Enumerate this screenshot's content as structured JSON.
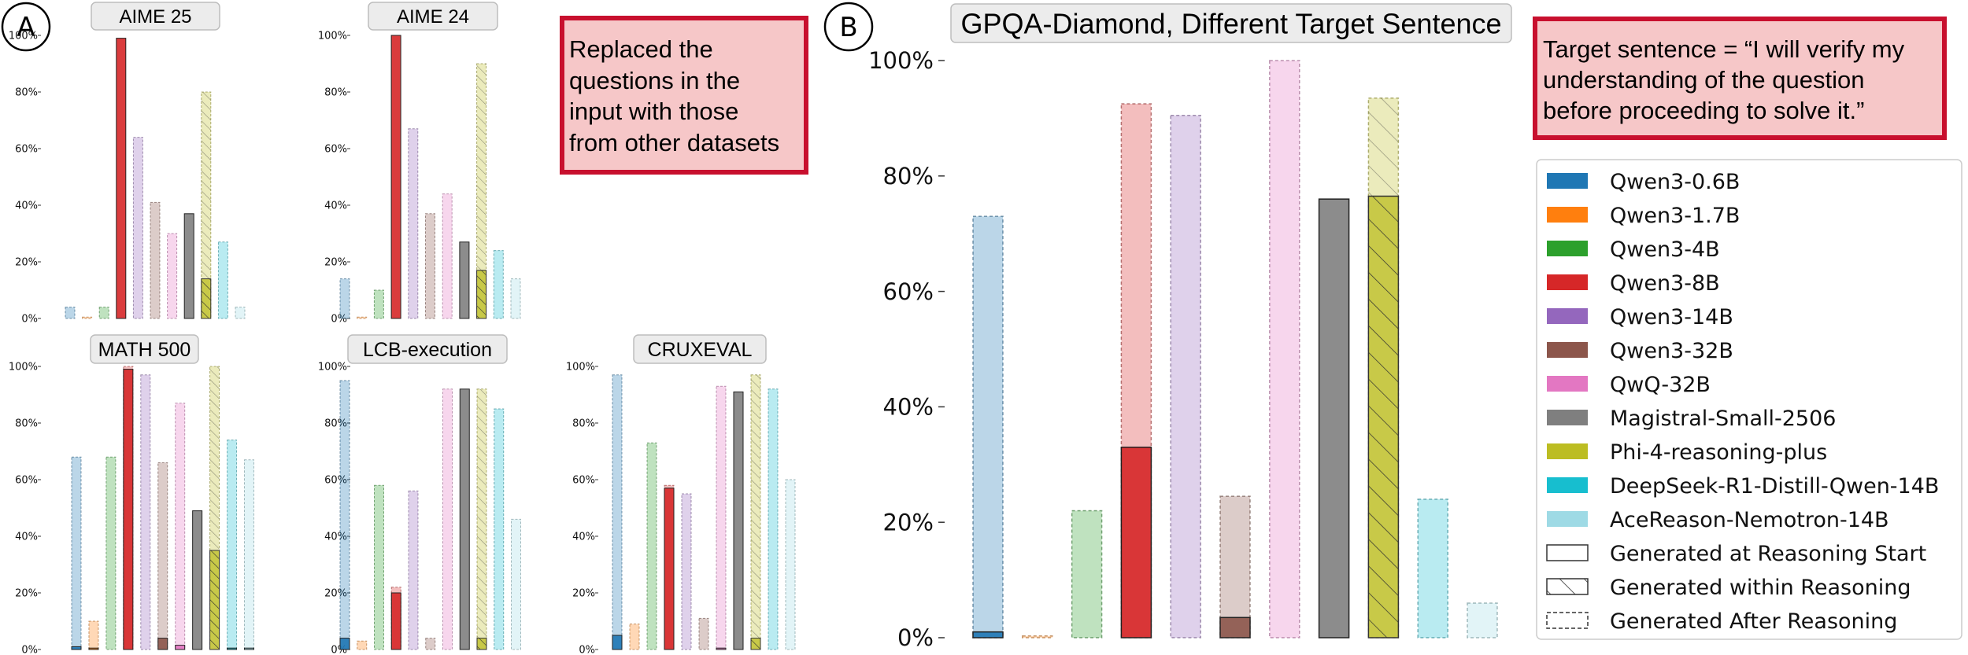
{
  "panel_labels": [
    "A",
    "B"
  ],
  "note_a": [
    "Replaced the",
    "questions in the",
    "input with those",
    "from other datasets"
  ],
  "note_b": [
    "Target sentence = “I will verify my",
    "understanding of the question",
    "before proceeding to solve it.”"
  ],
  "colors": [
    "#1f77b4",
    "#ff7f0e",
    "#2ca02c",
    "#d62728",
    "#9467bd",
    "#8c564b",
    "#e377c2",
    "#7f7f7f",
    "#bcbd22",
    "#17becf",
    "#9edae5"
  ],
  "legend": {
    "models": [
      "Qwen3-0.6B",
      "Qwen3-1.7B",
      "Qwen3-4B",
      "Qwen3-8B",
      "Qwen3-14B",
      "Qwen3-32B",
      "QwQ-32B",
      "Magistral-Small-2506",
      "Phi-4-reasoning-plus",
      "DeepSeek-R1-Distill-Qwen-14B",
      "AceReason-Nemotron-14B"
    ],
    "styles": [
      "Generated at Reasoning Start",
      "Generated within Reasoning",
      "Generated After Reasoning"
    ]
  },
  "chart_data": [
    {
      "type": "bar",
      "title": "AIME 25",
      "ylim": [
        0,
        100
      ],
      "yticks": [
        "0%",
        "20%",
        "40%",
        "60%",
        "80%",
        "100%"
      ],
      "series": [
        {
          "name": "Reasoning Start",
          "values": [
            0,
            0,
            0,
            99,
            0,
            0,
            0,
            37,
            0,
            0,
            0
          ]
        },
        {
          "name": "Within Reasoning",
          "values": [
            0,
            0,
            0,
            0,
            0,
            0,
            0,
            0,
            14,
            0,
            0
          ]
        },
        {
          "name": "After Reasoning",
          "values": [
            4,
            0.5,
            4,
            0,
            64,
            41,
            30,
            0,
            80,
            27,
            4
          ]
        }
      ]
    },
    {
      "type": "bar",
      "title": "AIME 24",
      "ylim": [
        0,
        100
      ],
      "yticks": [
        "0%",
        "20%",
        "40%",
        "60%",
        "80%",
        "100%"
      ],
      "series": [
        {
          "name": "Reasoning Start",
          "values": [
            0,
            0,
            0,
            100,
            0,
            0,
            0,
            27,
            0,
            0,
            0
          ]
        },
        {
          "name": "Within Reasoning",
          "values": [
            0,
            0,
            0,
            0,
            0,
            0,
            0,
            0,
            17,
            0,
            0
          ]
        },
        {
          "name": "After Reasoning",
          "values": [
            14,
            0.5,
            10,
            0,
            67,
            37,
            44,
            0,
            90,
            24,
            14
          ]
        }
      ]
    },
    {
      "type": "bar",
      "title": "MATH 500",
      "ylim": [
        0,
        100
      ],
      "yticks": [
        "0%",
        "20%",
        "40%",
        "60%",
        "80%",
        "100%"
      ],
      "series": [
        {
          "name": "Reasoning Start",
          "values": [
            1,
            0.5,
            0,
            99,
            0,
            4,
            1.5,
            49,
            0,
            0.5,
            0.5
          ]
        },
        {
          "name": "Within Reasoning",
          "values": [
            0,
            0,
            0,
            0,
            0,
            0,
            0,
            0,
            35,
            0,
            0
          ]
        },
        {
          "name": "After Reasoning",
          "values": [
            68,
            10,
            68,
            100,
            97,
            66,
            87,
            0,
            100,
            74,
            67
          ]
        }
      ]
    },
    {
      "type": "bar",
      "title": "LCB-execution",
      "ylim": [
        0,
        100
      ],
      "yticks": [
        "0%",
        "20%",
        "40%",
        "60%",
        "80%",
        "100%"
      ],
      "series": [
        {
          "name": "Reasoning Start",
          "values": [
            4,
            0,
            0,
            20,
            0,
            0,
            0,
            92,
            0,
            0,
            0
          ]
        },
        {
          "name": "Within Reasoning",
          "values": [
            0,
            0,
            0,
            0,
            0,
            0,
            0,
            0,
            4,
            0,
            0
          ]
        },
        {
          "name": "After Reasoning",
          "values": [
            95,
            3,
            58,
            22,
            56,
            4,
            92,
            0,
            92,
            85,
            46
          ]
        }
      ]
    },
    {
      "type": "bar",
      "title": "CRUXEVAL",
      "ylim": [
        0,
        100
      ],
      "yticks": [
        "0%",
        "20%",
        "40%",
        "60%",
        "80%",
        "100%"
      ],
      "series": [
        {
          "name": "Reasoning Start",
          "values": [
            5,
            0,
            0,
            57,
            0,
            0,
            0.5,
            91,
            0,
            0,
            0
          ]
        },
        {
          "name": "Within Reasoning",
          "values": [
            0,
            0,
            0,
            0,
            0,
            0,
            0,
            0,
            4,
            0,
            0
          ]
        },
        {
          "name": "After Reasoning",
          "values": [
            97,
            9,
            73,
            58,
            55,
            11,
            93,
            0,
            97,
            92,
            60
          ]
        }
      ]
    },
    {
      "type": "bar",
      "title": "GPQA-Diamond, Different Target Sentence",
      "ylim": [
        0,
        100
      ],
      "yticks": [
        "0%",
        "20%",
        "40%",
        "60%",
        "80%",
        "100%"
      ],
      "series": [
        {
          "name": "Reasoning Start",
          "values": [
            1,
            0,
            0,
            33,
            0,
            3.5,
            0,
            76,
            0,
            0,
            0
          ]
        },
        {
          "name": "Within Reasoning",
          "values": [
            0,
            0,
            0,
            0,
            0,
            0,
            0,
            0,
            76.5,
            0,
            0
          ]
        },
        {
          "name": "After Reasoning",
          "values": [
            73,
            0.3,
            22,
            92.5,
            90.5,
            24.5,
            100,
            0,
            93.5,
            24,
            6
          ]
        }
      ]
    }
  ]
}
